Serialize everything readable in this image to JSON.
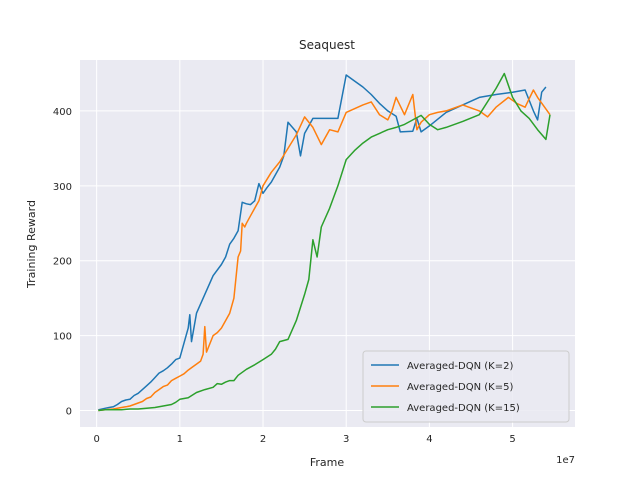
{
  "chart_data": {
    "type": "line",
    "title": "Seaquest",
    "xlabel": "Frame",
    "ylabel": "Training Reward",
    "x_offset_label": "1e7",
    "xlim": [
      -2.0,
      57.5
    ],
    "ylim": [
      -22,
      468
    ],
    "x_tick_values": [
      0,
      10,
      20,
      30,
      40,
      50
    ],
    "x_tick_labels": [
      "0",
      "1",
      "2",
      "3",
      "4",
      "5"
    ],
    "y_tick_values": [
      0,
      100,
      200,
      300,
      400
    ],
    "y_tick_labels": [
      "0",
      "100",
      "200",
      "300",
      "400"
    ],
    "grid": true,
    "legend_position": "lower-right",
    "series": [
      {
        "name": "Averaged-DQN (K=2)",
        "color": "#1f77b4",
        "x": [
          0.2,
          1.0,
          1.5,
          2.0,
          2.5,
          3.0,
          3.5,
          4.0,
          4.5,
          5.0,
          5.5,
          6.0,
          6.5,
          7.0,
          7.5,
          8.0,
          8.5,
          9.0,
          9.5,
          10.0,
          10.5,
          11.0,
          11.2,
          11.4,
          12.0,
          13.0,
          14.0,
          15.0,
          15.5,
          16.0,
          16.5,
          17.0,
          17.5,
          18.0,
          18.5,
          19.0,
          19.5,
          20.0,
          20.5,
          21.0,
          21.5,
          22.0,
          22.5,
          23.0,
          24.0,
          24.5,
          25.0,
          25.5,
          26.0,
          27.0,
          29.0,
          30.0,
          31.0,
          32.0,
          33.0,
          34.0,
          35.0,
          36.0,
          36.5,
          38.0,
          38.5,
          39.0,
          40.0,
          42.0,
          44.0,
          46.0,
          48.0,
          50.0,
          51.5,
          52.5,
          53.0,
          53.5,
          54.0
        ],
        "y": [
          1,
          3,
          4,
          5,
          8,
          12,
          14,
          15,
          20,
          23,
          28,
          33,
          38,
          44,
          50,
          53,
          57,
          62,
          68,
          70,
          90,
          110,
          128,
          92,
          130,
          155,
          180,
          195,
          205,
          222,
          230,
          240,
          278,
          276,
          275,
          280,
          303,
          290,
          298,
          305,
          315,
          325,
          340,
          385,
          372,
          340,
          370,
          380,
          390,
          390,
          390,
          448,
          440,
          432,
          422,
          410,
          400,
          393,
          372,
          373,
          390,
          372,
          380,
          398,
          408,
          418,
          422,
          425,
          428,
          400,
          388,
          425,
          432
        ]
      },
      {
        "name": "Averaged-DQN (K=5)",
        "color": "#ff7f0e",
        "x": [
          0.2,
          1.0,
          2.0,
          2.5,
          3.0,
          3.5,
          4.0,
          4.5,
          5.0,
          5.5,
          6.0,
          6.5,
          7.0,
          7.5,
          8.0,
          8.5,
          9.0,
          9.5,
          10.0,
          10.5,
          11.0,
          11.5,
          12.0,
          12.5,
          12.8,
          13.0,
          13.2,
          14.0,
          14.5,
          15.0,
          15.5,
          16.0,
          16.5,
          17.0,
          17.3,
          17.5,
          17.8,
          18.0,
          18.5,
          19.0,
          19.5,
          20.0,
          21.0,
          22.0,
          23.0,
          24.0,
          25.0,
          26.0,
          27.0,
          28.0,
          29.0,
          30.0,
          32.0,
          33.0,
          34.0,
          35.0,
          35.5,
          36.0,
          37.0,
          38.0,
          38.5,
          39.0,
          40.0,
          41.0,
          42.0,
          44.0,
          46.0,
          47.0,
          48.0,
          49.5,
          50.5,
          51.5,
          52.5,
          53.0,
          54.5
        ],
        "y": [
          0,
          1,
          2,
          3,
          4,
          5,
          6,
          8,
          10,
          12,
          16,
          18,
          24,
          28,
          32,
          34,
          40,
          43,
          46,
          49,
          54,
          58,
          62,
          66,
          75,
          112,
          78,
          100,
          104,
          110,
          120,
          130,
          150,
          205,
          213,
          250,
          245,
          250,
          260,
          270,
          280,
          300,
          318,
          332,
          350,
          368,
          392,
          378,
          355,
          375,
          372,
          398,
          408,
          412,
          395,
          388,
          400,
          418,
          395,
          422,
          375,
          385,
          395,
          398,
          400,
          408,
          400,
          392,
          405,
          418,
          410,
          405,
          428,
          418,
          395
        ]
      },
      {
        "name": "Averaged-DQN (K=15)",
        "color": "#2ca02c",
        "x": [
          0.2,
          1.0,
          2.0,
          3.0,
          4.0,
          5.0,
          6.0,
          7.0,
          8.0,
          9.0,
          9.5,
          10.0,
          11.0,
          12.0,
          13.0,
          14.0,
          14.5,
          15.0,
          15.5,
          16.0,
          16.5,
          17.0,
          18.0,
          19.0,
          20.0,
          21.0,
          21.5,
          22.0,
          23.0,
          24.0,
          25.0,
          25.5,
          26.0,
          26.5,
          27.0,
          28.0,
          29.0,
          30.0,
          31.0,
          32.0,
          33.0,
          34.0,
          35.0,
          36.0,
          37.0,
          38.0,
          39.0,
          40.0,
          41.0,
          42.0,
          44.0,
          46.0,
          48.0,
          49.0,
          50.0,
          51.0,
          52.0,
          53.0,
          54.0,
          54.5
        ],
        "y": [
          0,
          1,
          1,
          1,
          2,
          2,
          3,
          4,
          6,
          8,
          11,
          15,
          17,
          24,
          28,
          31,
          36,
          35,
          38,
          40,
          40,
          47,
          55,
          61,
          68,
          75,
          82,
          92,
          95,
          120,
          155,
          175,
          228,
          205,
          245,
          270,
          300,
          335,
          347,
          357,
          365,
          370,
          375,
          378,
          382,
          388,
          394,
          382,
          375,
          378,
          386,
          395,
          430,
          450,
          418,
          400,
          390,
          375,
          362,
          395
        ]
      }
    ]
  }
}
